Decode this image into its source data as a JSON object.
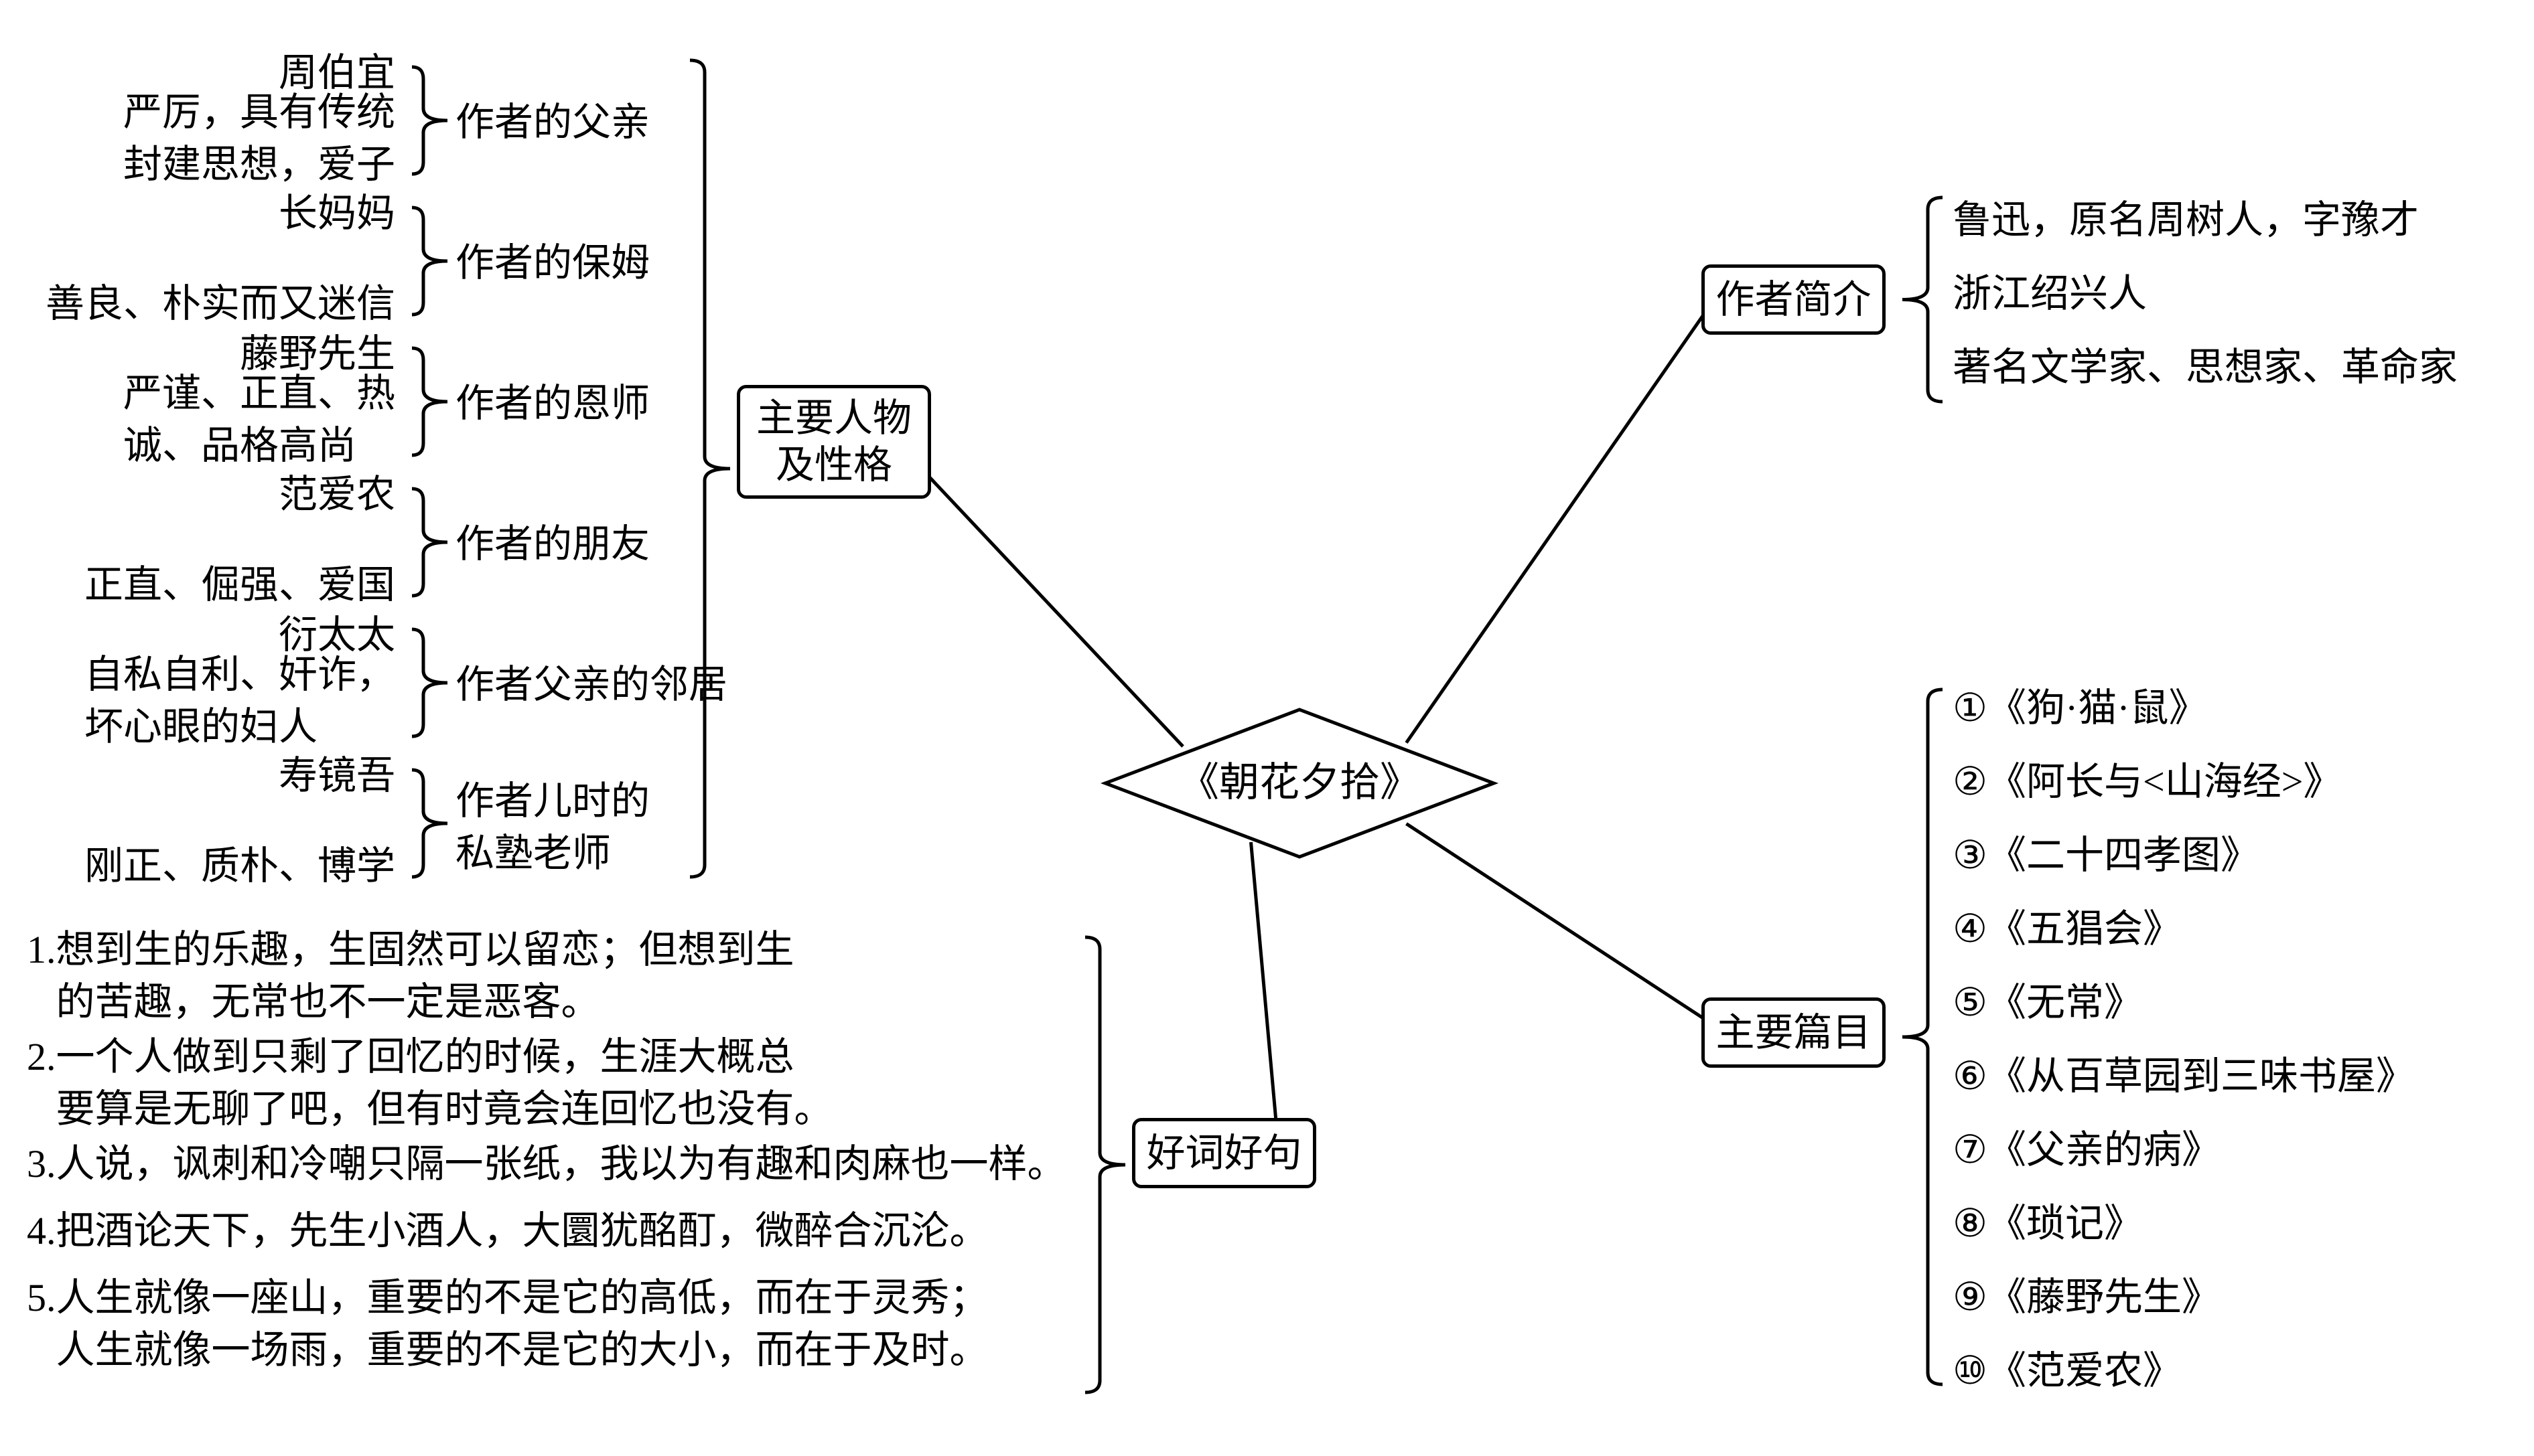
{
  "center": {
    "title": "《朝花夕拾》",
    "fontsize": 60
  },
  "branches": {
    "author_intro": {
      "label": "作者简介",
      "fontsize": 58,
      "items": [
        "鲁迅，原名周树人，字豫才",
        "浙江绍兴人",
        "著名文学家、思想家、革命家"
      ],
      "item_fontsize": 58
    },
    "main_chapters": {
      "label": "主要篇目",
      "fontsize": 58,
      "items": [
        "《狗·猫·鼠》",
        "《阿长与<山海经>》",
        "《二十四孝图》",
        "《五猖会》",
        "《无常》",
        "《从百草园到三味书屋》",
        "《父亲的病》",
        "《琐记》",
        "《藤野先生》",
        "《范爱农》"
      ],
      "item_fontsize": 58,
      "numbers": [
        "①",
        "②",
        "③",
        "④",
        "⑤",
        "⑥",
        "⑦",
        "⑧",
        "⑨",
        "⑩"
      ]
    },
    "good_words": {
      "label": "好词好句",
      "fontsize": 58,
      "items": [
        "1.想到生的乐趣，生固然可以留恋；但想到生\n   的苦趣，无常也不一定是恶客。",
        "2.一个人做到只剩了回忆的时候，生涯大概总\n   要算是无聊了吧，但有时竟会连回忆也没有。",
        "3.人说，讽刺和冷嘲只隔一张纸，我以为有趣和肉麻也一样。",
        "4.把酒论天下，先生小酒人，大圜犹酩酊，微醉合沉沦。",
        "5.人生就像一座山，重要的不是它的高低，而在于灵秀；\n   人生就像一场雨，重要的不是它的大小，而在于及时。"
      ],
      "item_fontsize": 58
    },
    "characters": {
      "label": "主要人物\n及性格",
      "fontsize": 58,
      "people": [
        {
          "role": "作者的父亲",
          "name": "周伯宜",
          "desc": "严厉，具有传统\n封建思想，爱子"
        },
        {
          "role": "作者的保姆",
          "name": "长妈妈",
          "desc": "善良、朴实而又迷信"
        },
        {
          "role": "作者的恩师",
          "name": "藤野先生",
          "desc": "严谨、正直、热\n诚、品格高尚"
        },
        {
          "role": "作者的朋友",
          "name": "范爱农",
          "desc": "正直、倔强、爱国"
        },
        {
          "role": "作者父亲的邻居",
          "name": "衍太太",
          "desc": "自私自利、奸诈，\n坏心眼的妇人"
        },
        {
          "role": "作者儿时的\n私塾老师",
          "name": "寿镜吾",
          "desc": "刚正、质朴、博学"
        }
      ],
      "role_fontsize": 58,
      "text_fontsize": 58
    }
  },
  "style": {
    "stroke": "#000000",
    "stroke_width": 5,
    "background": "#ffffff"
  }
}
